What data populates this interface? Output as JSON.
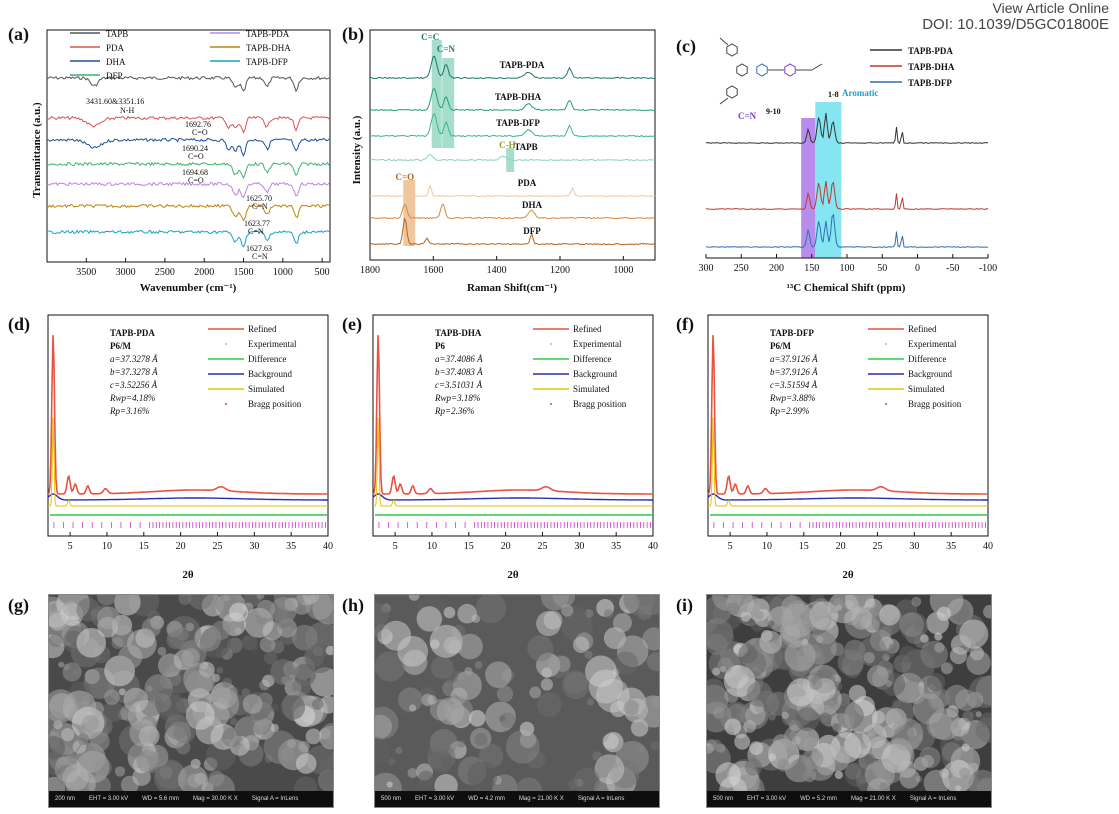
{
  "header": {
    "line1": "View Article Online",
    "line2": "DOI: 10.1039/D5GC01800E"
  },
  "panel_letters": [
    "(a)",
    "(b)",
    "(c)",
    "(d)",
    "(e)",
    "(f)",
    "(g)",
    "(h)",
    "(i)"
  ],
  "chart_data": [
    {
      "panel": "(a)",
      "type": "line",
      "xlabel": "Wavenumber (cm⁻¹)",
      "ylabel": "Transmittance (a.u.)",
      "xlim": [
        4000,
        400
      ],
      "xticks": [
        3500,
        3000,
        2500,
        2000,
        1500,
        1000,
        500
      ],
      "xreversed": true,
      "series": [
        {
          "name": "TAPB",
          "color": "#555555"
        },
        {
          "name": "PDA",
          "color": "#d9534f"
        },
        {
          "name": "DHA",
          "color": "#1f4e9c"
        },
        {
          "name": "DFP",
          "color": "#3cb371"
        },
        {
          "name": "TAPB-PDA",
          "color": "#b388e6"
        },
        {
          "name": "TAPB-DHA",
          "color": "#b8860b"
        },
        {
          "name": "TAPB-DFP",
          "color": "#17a2c8"
        }
      ],
      "annotations": [
        "3431.60&3351.16",
        "N-H",
        "1692.76",
        "C=O",
        "1690.24",
        "C=O",
        "1694.68",
        "C=O",
        "1625.70",
        "C=N",
        "1623.77",
        "C=N",
        "1627.63",
        "C=N"
      ]
    },
    {
      "panel": "(b)",
      "type": "line",
      "xlabel": "Raman Shift(cm⁻¹)",
      "ylabel": "Intensity (a.u.)",
      "xlim": [
        1800,
        900
      ],
      "xticks": [
        1800,
        1600,
        1400,
        1200,
        1000
      ],
      "xreversed": true,
      "series": [
        {
          "name": "TAPB-PDA",
          "color": "#1a7a6e"
        },
        {
          "name": "TAPB-DHA",
          "color": "#1f9e7f"
        },
        {
          "name": "TAPB-DFP",
          "color": "#3bb58c"
        },
        {
          "name": "TAPB",
          "color": "#8fd3bf"
        },
        {
          "name": "PDA",
          "color": "#f2c9a0"
        },
        {
          "name": "DHA",
          "color": "#d9863b"
        },
        {
          "name": "DFP",
          "color": "#b8621a"
        }
      ],
      "annotations": [
        "C=C",
        "C=N",
        "C-H",
        "C=O"
      ]
    },
    {
      "panel": "(c)",
      "type": "line",
      "xlabel": "¹³C Chemical Shift (ppm)",
      "xlim": [
        300,
        -100
      ],
      "xticks": [
        300,
        250,
        200,
        150,
        100,
        50,
        0,
        -50,
        -100
      ],
      "xreversed": true,
      "series": [
        {
          "name": "TAPB-PDA",
          "color": "#333333"
        },
        {
          "name": "TAPB-DHA",
          "color": "#c0392b"
        },
        {
          "name": "TAPB-DFP",
          "color": "#2e6fb5"
        }
      ],
      "annotations": [
        "C=N",
        "9-10",
        "1-8",
        "Aromatic"
      ]
    },
    {
      "panel": "(d)",
      "type": "line",
      "xlabel": "2θ",
      "xlim": [
        2,
        40
      ],
      "xticks": [
        5,
        10,
        15,
        20,
        25,
        30,
        35,
        40
      ],
      "params": [
        "TAPB-PDA",
        "P6/M",
        "a=37.3278 Å",
        "b=37.3278 Å",
        "c=3.52256 Å",
        "Rwp=4.18%",
        "Rp=3.16%"
      ],
      "legend": [
        "Refined",
        "Experimental",
        "Difference",
        "Background",
        "Simulated",
        "Bragg position"
      ]
    },
    {
      "panel": "(e)",
      "type": "line",
      "xlabel": "2θ",
      "xlim": [
        2,
        40
      ],
      "xticks": [
        5,
        10,
        15,
        20,
        25,
        30,
        35,
        40
      ],
      "params": [
        "TAPB-DHA",
        "P6",
        "a=37.4086 Å",
        "b=37.4083 Å",
        "c=3.51031 Å",
        "Rwp=3.18%",
        "Rp=2.36%"
      ],
      "legend": [
        "Refined",
        "Experimental",
        "Difference",
        "Background",
        "Simulated",
        "Bragg position"
      ]
    },
    {
      "panel": "(f)",
      "type": "line",
      "xlabel": "2θ",
      "xlim": [
        2,
        40
      ],
      "xticks": [
        5,
        10,
        15,
        20,
        25,
        30,
        35,
        40
      ],
      "params": [
        "TAPB-DFP",
        "P6/M",
        "a=37.9126 Å",
        "b=37.9126 Å",
        "c=3.51594 Å",
        "Rwp=3.88%",
        "Rp=2.99%"
      ],
      "legend": [
        "Refined",
        "Experimental",
        "Difference",
        "Background",
        "Simulated",
        "Bragg position"
      ]
    }
  ],
  "pxrd_colors": {
    "refined": "#e8533f",
    "experimental": "#bbbbbb",
    "difference": "#2ecc40",
    "background": "#2b2bb0",
    "simulated": "#e6c200",
    "bragg": "#cc33cc"
  },
  "sem": [
    {
      "panel": "(g)",
      "scale": "200 nm",
      "bar": [
        "EHT = 3.00 kV",
        "WD = 5.6 mm",
        "Mag = 30.00 K X",
        "Signal A = InLens"
      ]
    },
    {
      "panel": "(h)",
      "scale": "500 nm",
      "bar": [
        "EHT = 3.00 kV",
        "WD = 4.2 mm",
        "Mag = 21.00 K X",
        "Signal A = InLens"
      ]
    },
    {
      "panel": "(i)",
      "scale": "500 nm",
      "bar": [
        "EHT = 3.00 kV",
        "WD = 5.2 mm",
        "Mag = 21.00 K X",
        "Signal A = InLens"
      ]
    }
  ]
}
